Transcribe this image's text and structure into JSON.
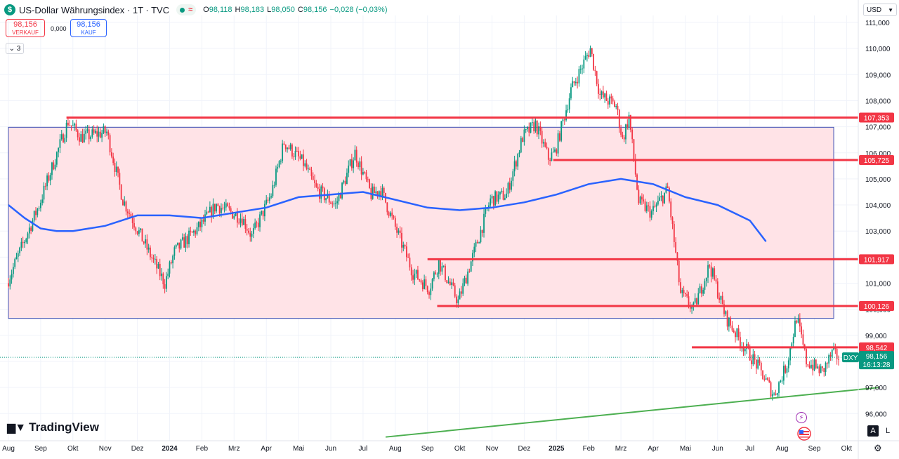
{
  "header": {
    "title": "US-Dollar Währungsindex · 1T · TVC",
    "ohlc": [
      {
        "k": "O",
        "v": "98,118"
      },
      {
        "k": "H",
        "v": "98,183"
      },
      {
        "k": "L",
        "v": "98,050"
      },
      {
        "k": "C",
        "v": "98,156"
      },
      {
        "k": "",
        "v": "−0,028 (−0,03%)"
      }
    ],
    "status_glyph": "≈"
  },
  "quote": {
    "sell_price": "98,156",
    "sell_label": "VERKAUF",
    "spread": "0,000",
    "buy_price": "98,156",
    "buy_label": "KAUF"
  },
  "indicators_toggle": "3",
  "currency": "USD",
  "brand": "TradingView",
  "scale_buttons": {
    "auto": "A",
    "log": "L"
  },
  "colors": {
    "up": "#089981",
    "down": "#f23645",
    "ma": "#2962ff",
    "support_line": "#f23645",
    "trendline": "#4caf50",
    "range_fill": "#ffe3e7",
    "range_border": "#3f51b5"
  },
  "icons": [
    "dollar-icon",
    "chevron-down-icon",
    "settings-icon",
    "flash-icon",
    "us-flag-icon"
  ],
  "chart_data": {
    "type": "candlestick",
    "symbol": "DXY",
    "y_axis": {
      "ticks": [
        "111,000",
        "110,000",
        "109,000",
        "108,000",
        "107,000",
        "106,000",
        "105,000",
        "104,000",
        "103,000",
        "102,000",
        "101,000",
        "100,000",
        "99,000",
        "98,000",
        "97,000",
        "96,000"
      ],
      "values": [
        111,
        110,
        109,
        108,
        107,
        106,
        105,
        104,
        103,
        102,
        101,
        100,
        99,
        98,
        97,
        96
      ]
    },
    "x_axis": {
      "ticks": [
        "Aug",
        "Sep",
        "Okt",
        "Nov",
        "Dez",
        "2024",
        "Feb",
        "Mrz",
        "Apr",
        "Mai",
        "Jun",
        "Jul",
        "Aug",
        "Sep",
        "Okt",
        "Nov",
        "Dez",
        "2025",
        "Feb",
        "Mrz",
        "Apr",
        "Mai",
        "Jun",
        "Jul",
        "Aug",
        "Sep",
        "Okt"
      ],
      "months": [
        0,
        1,
        2,
        3,
        4,
        5,
        6,
        7,
        8,
        9,
        10,
        11,
        12,
        13,
        14,
        15,
        16,
        17,
        18,
        19,
        20,
        21,
        22,
        23,
        24,
        25,
        26
      ],
      "bold": [
        "2024",
        "2025"
      ]
    },
    "price_path": [
      [
        0.0,
        101.0
      ],
      [
        1.0,
        104.0
      ],
      [
        1.9,
        107.2
      ],
      [
        2.3,
        106.6
      ],
      [
        3.1,
        106.8
      ],
      [
        3.6,
        104.2
      ],
      [
        4.4,
        102.2
      ],
      [
        4.9,
        101.0
      ],
      [
        5.2,
        102.2
      ],
      [
        6.0,
        103.2
      ],
      [
        6.5,
        104.0
      ],
      [
        7.3,
        103.5
      ],
      [
        7.6,
        102.8
      ],
      [
        8.2,
        104.4
      ],
      [
        8.6,
        106.4
      ],
      [
        9.2,
        105.6
      ],
      [
        9.6,
        104.6
      ],
      [
        10.2,
        104.0
      ],
      [
        10.8,
        106.0
      ],
      [
        11.3,
        104.4
      ],
      [
        11.6,
        104.6
      ],
      [
        12.0,
        103.3
      ],
      [
        12.6,
        101.4
      ],
      [
        13.1,
        100.8
      ],
      [
        13.4,
        101.8
      ],
      [
        14.0,
        100.3
      ],
      [
        14.5,
        102.2
      ],
      [
        15.0,
        104.2
      ],
      [
        15.5,
        104.4
      ],
      [
        16.0,
        106.6
      ],
      [
        16.4,
        107.1
      ],
      [
        16.8,
        105.8
      ],
      [
        17.0,
        106.0
      ],
      [
        17.5,
        108.4
      ],
      [
        18.1,
        110.0
      ],
      [
        18.4,
        108.2
      ],
      [
        18.9,
        107.8
      ],
      [
        19.1,
        106.5
      ],
      [
        19.3,
        107.4
      ],
      [
        19.6,
        104.1
      ],
      [
        20.0,
        103.7
      ],
      [
        20.5,
        104.6
      ],
      [
        20.9,
        100.6
      ],
      [
        21.3,
        100.0
      ],
      [
        21.8,
        101.7
      ],
      [
        22.3,
        99.7
      ],
      [
        22.8,
        98.7
      ],
      [
        23.3,
        97.8
      ],
      [
        23.8,
        96.7
      ],
      [
        24.2,
        97.9
      ],
      [
        24.5,
        99.7
      ],
      [
        24.8,
        98.0
      ],
      [
        25.3,
        97.6
      ],
      [
        25.6,
        98.3
      ],
      [
        25.8,
        98.16
      ]
    ],
    "moving_average": [
      [
        0.0,
        104.0
      ],
      [
        0.5,
        103.5
      ],
      [
        1.0,
        103.1
      ],
      [
        1.5,
        103.0
      ],
      [
        2.0,
        103.0
      ],
      [
        3.0,
        103.2
      ],
      [
        4.0,
        103.6
      ],
      [
        5.0,
        103.6
      ],
      [
        6.0,
        103.5
      ],
      [
        7.0,
        103.7
      ],
      [
        8.0,
        103.9
      ],
      [
        9.0,
        104.3
      ],
      [
        10.0,
        104.4
      ],
      [
        11.0,
        104.5
      ],
      [
        12.0,
        104.2
      ],
      [
        13.0,
        103.9
      ],
      [
        14.0,
        103.8
      ],
      [
        15.0,
        103.9
      ],
      [
        16.0,
        104.1
      ],
      [
        17.0,
        104.4
      ],
      [
        18.0,
        104.8
      ],
      [
        19.0,
        105.0
      ],
      [
        20.0,
        104.8
      ],
      [
        21.0,
        104.3
      ],
      [
        22.0,
        104.0
      ],
      [
        23.0,
        103.4
      ],
      [
        23.5,
        102.6
      ]
    ],
    "horizontal_levels": [
      {
        "label": "107,353",
        "value": 107.353,
        "from_month": 1.8
      },
      {
        "label": "105,725",
        "value": 105.725,
        "from_month": 16.9
      },
      {
        "label": "101,917",
        "value": 101.917,
        "from_month": 13.0
      },
      {
        "label": "100,126",
        "value": 100.126,
        "from_month": 13.3
      },
      {
        "label": "98,542",
        "value": 98.542,
        "from_month": 21.2
      }
    ],
    "range_box": {
      "from_month": 0.0,
      "to_month": 25.6,
      "top": 106.98,
      "bottom": 99.65
    },
    "trendline": {
      "from": [
        11.7,
        95.1
      ],
      "to": [
        27.0,
        97.0
      ]
    },
    "last_price": {
      "label": "98,156",
      "value": 98.156,
      "countdown": "16:13:28",
      "symbol": "DXY"
    }
  }
}
